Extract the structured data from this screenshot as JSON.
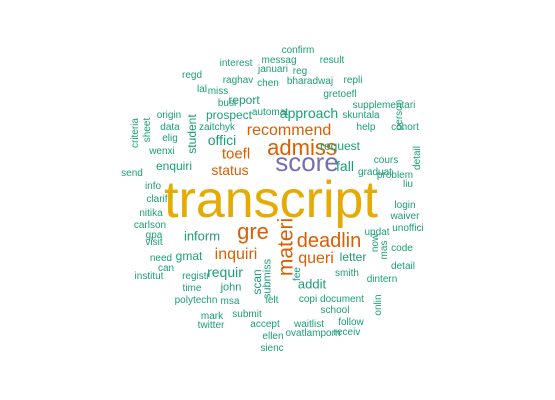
{
  "colors": {
    "gold": "#e6ab02",
    "orange": "#d95f02",
    "purple": "#7570b3",
    "teal": "#1b9e77"
  },
  "words": [
    {
      "text": "transcript",
      "color": "gold",
      "weight": 10
    },
    {
      "text": "score",
      "color": "purple",
      "weight": 6
    },
    {
      "text": "gre",
      "color": "orange",
      "weight": 5
    },
    {
      "text": "materi",
      "color": "orange",
      "weight": 5
    },
    {
      "text": "admiss",
      "color": "orange",
      "weight": 5
    },
    {
      "text": "deadlin",
      "color": "orange",
      "weight": 4
    },
    {
      "text": "recommend",
      "color": "orange",
      "weight": 4
    },
    {
      "text": "inquiri",
      "color": "orange",
      "weight": 4
    },
    {
      "text": "queri",
      "color": "orange",
      "weight": 4
    },
    {
      "text": "toefl",
      "color": "orange",
      "weight": 4
    },
    {
      "text": "status",
      "color": "orange",
      "weight": 4
    },
    {
      "text": "fall",
      "color": "teal",
      "weight": 3
    },
    {
      "text": "offici",
      "color": "teal",
      "weight": 3
    },
    {
      "text": "approach",
      "color": "teal",
      "weight": 3
    },
    {
      "text": "request",
      "color": "teal",
      "weight": 3
    },
    {
      "text": "inform",
      "color": "teal",
      "weight": 3
    },
    {
      "text": "addit",
      "color": "teal",
      "weight": 3
    },
    {
      "text": "requir",
      "color": "teal",
      "weight": 3
    },
    {
      "text": "report",
      "color": "teal",
      "weight": 2
    },
    {
      "text": "prospect",
      "color": "teal",
      "weight": 2
    },
    {
      "text": "student",
      "color": "teal",
      "weight": 2
    },
    {
      "text": "enquiri",
      "color": "teal",
      "weight": 2
    },
    {
      "text": "gmat",
      "color": "teal",
      "weight": 2
    },
    {
      "text": "letter",
      "color": "teal",
      "weight": 2
    },
    {
      "text": "scan",
      "color": "teal",
      "weight": 2
    },
    {
      "text": "submiss",
      "color": "teal",
      "weight": 2
    },
    {
      "text": "john",
      "color": "teal",
      "weight": 2
    },
    {
      "text": "smith",
      "color": "teal",
      "weight": 1
    },
    {
      "text": "cours",
      "color": "teal",
      "weight": 1
    },
    {
      "text": "graduat",
      "color": "teal",
      "weight": 1
    },
    {
      "text": "fee",
      "color": "teal",
      "weight": 1
    },
    {
      "text": "ielt",
      "color": "teal",
      "weight": 1
    },
    {
      "text": "copi",
      "color": "teal",
      "weight": 1
    },
    {
      "text": "document",
      "color": "teal",
      "weight": 1
    },
    {
      "text": "school",
      "color": "teal",
      "weight": 1
    },
    {
      "text": "submit",
      "color": "teal",
      "weight": 1
    },
    {
      "text": "msa",
      "color": "teal",
      "weight": 1
    },
    {
      "text": "accept",
      "color": "teal",
      "weight": 1
    },
    {
      "text": "waitlist",
      "color": "teal",
      "weight": 1
    },
    {
      "text": "follow",
      "color": "teal",
      "weight": 1
    },
    {
      "text": "mark",
      "color": "teal",
      "weight": 1
    },
    {
      "text": "twitter",
      "color": "teal",
      "weight": 1
    },
    {
      "text": "ellen",
      "color": "teal",
      "weight": 1
    },
    {
      "text": "ovatlamporn",
      "color": "teal",
      "weight": 1
    },
    {
      "text": "receiv",
      "color": "teal",
      "weight": 1
    },
    {
      "text": "sienc",
      "color": "teal",
      "weight": 1
    },
    {
      "text": "polytechn",
      "color": "teal",
      "weight": 1
    },
    {
      "text": "time",
      "color": "teal",
      "weight": 1
    },
    {
      "text": "institut",
      "color": "teal",
      "weight": 1
    },
    {
      "text": "registr",
      "color": "teal",
      "weight": 1
    },
    {
      "text": "can",
      "color": "teal",
      "weight": 1
    },
    {
      "text": "need",
      "color": "teal",
      "weight": 1
    },
    {
      "text": "visit",
      "color": "teal",
      "weight": 1
    },
    {
      "text": "gpa",
      "color": "teal",
      "weight": 1
    },
    {
      "text": "carlson",
      "color": "teal",
      "weight": 1
    },
    {
      "text": "nitika",
      "color": "teal",
      "weight": 1
    },
    {
      "text": "clarif",
      "color": "teal",
      "weight": 1
    },
    {
      "text": "info",
      "color": "teal",
      "weight": 1
    },
    {
      "text": "send",
      "color": "teal",
      "weight": 1
    },
    {
      "text": "wenxi",
      "color": "teal",
      "weight": 1
    },
    {
      "text": "elig",
      "color": "teal",
      "weight": 1
    },
    {
      "text": "data",
      "color": "teal",
      "weight": 1
    },
    {
      "text": "origin",
      "color": "teal",
      "weight": 1
    },
    {
      "text": "sheet",
      "color": "teal",
      "weight": 1
    },
    {
      "text": "criteria",
      "color": "teal",
      "weight": 1
    },
    {
      "text": "zaitchyk",
      "color": "teal",
      "weight": 1
    },
    {
      "text": "busi",
      "color": "teal",
      "weight": 1
    },
    {
      "text": "automat",
      "color": "teal",
      "weight": 1
    },
    {
      "text": "lal",
      "color": "teal",
      "weight": 1
    },
    {
      "text": "miss",
      "color": "teal",
      "weight": 1
    },
    {
      "text": "regd",
      "color": "teal",
      "weight": 1
    },
    {
      "text": "raghav",
      "color": "teal",
      "weight": 1
    },
    {
      "text": "chen",
      "color": "teal",
      "weight": 1
    },
    {
      "text": "interest",
      "color": "teal",
      "weight": 1
    },
    {
      "text": "messag",
      "color": "teal",
      "weight": 1
    },
    {
      "text": "januari",
      "color": "teal",
      "weight": 1
    },
    {
      "text": "reg",
      "color": "teal",
      "weight": 1
    },
    {
      "text": "confirm",
      "color": "teal",
      "weight": 1
    },
    {
      "text": "result",
      "color": "teal",
      "weight": 1
    },
    {
      "text": "bharadwaj",
      "color": "teal",
      "weight": 1
    },
    {
      "text": "repli",
      "color": "teal",
      "weight": 1
    },
    {
      "text": "gretoefl",
      "color": "teal",
      "weight": 1
    },
    {
      "text": "supplementari",
      "color": "teal",
      "weight": 1
    },
    {
      "text": "skuntala",
      "color": "teal",
      "weight": 1
    },
    {
      "text": "help",
      "color": "teal",
      "weight": 1
    },
    {
      "text": "cohort",
      "color": "teal",
      "weight": 1
    },
    {
      "text": "person",
      "color": "teal",
      "weight": 1
    },
    {
      "text": "detail",
      "color": "teal",
      "weight": 1
    },
    {
      "text": "problem",
      "color": "teal",
      "weight": 1
    },
    {
      "text": "liu",
      "color": "teal",
      "weight": 1
    },
    {
      "text": "login",
      "color": "teal",
      "weight": 1
    },
    {
      "text": "waiver",
      "color": "teal",
      "weight": 1
    },
    {
      "text": "unoffici",
      "color": "teal",
      "weight": 1
    },
    {
      "text": "updat",
      "color": "teal",
      "weight": 1
    },
    {
      "text": "now",
      "color": "teal",
      "weight": 1
    },
    {
      "text": "code",
      "color": "teal",
      "weight": 1
    },
    {
      "text": "mas",
      "color": "teal",
      "weight": 1
    },
    {
      "text": "detail",
      "color": "teal",
      "weight": 1
    },
    {
      "text": "dintern",
      "color": "teal",
      "weight": 1
    },
    {
      "text": "onlin",
      "color": "teal",
      "weight": 1
    },
    {
      "text": "financi",
      "color": "teal",
      "weight": 1
    }
  ]
}
